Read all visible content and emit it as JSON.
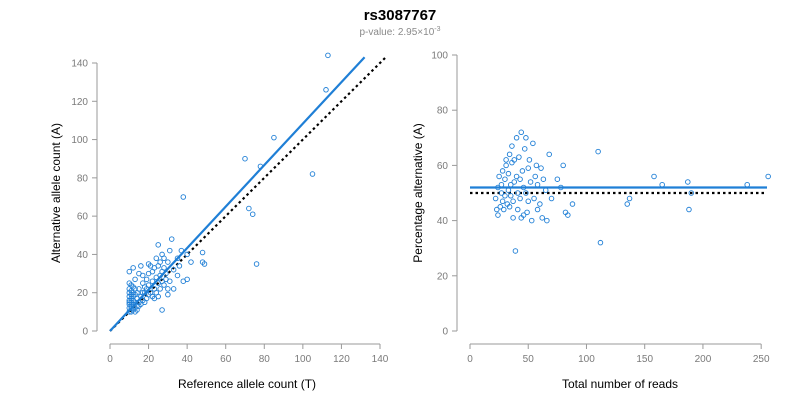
{
  "figure": {
    "title": "rs3087767",
    "subtitle_prefix": "p-value: 2.95×10",
    "subtitle_exponent": "-3"
  },
  "chart_data": [
    {
      "type": "scatter",
      "xlabel": "Reference allele count (T)",
      "ylabel": "Alternative allele count (A)",
      "xlim": [
        0,
        140
      ],
      "ylim": [
        0,
        140
      ],
      "xticks": [
        0,
        20,
        40,
        60,
        80,
        100,
        120,
        140
      ],
      "yticks": [
        0,
        20,
        40,
        60,
        80,
        100,
        120,
        140
      ],
      "colors": {
        "points": "#1f7fd6",
        "fit": "#1f7fd6",
        "reference": "#000000"
      },
      "points": [
        [
          10,
          10
        ],
        [
          10,
          12
        ],
        [
          10,
          14
        ],
        [
          10,
          15
        ],
        [
          10,
          16
        ],
        [
          10,
          18
        ],
        [
          10,
          20
        ],
        [
          10,
          22
        ],
        [
          10,
          25
        ],
        [
          10,
          31
        ],
        [
          11,
          10
        ],
        [
          11,
          12
        ],
        [
          11,
          13
        ],
        [
          11,
          15
        ],
        [
          11,
          17
        ],
        [
          11,
          19
        ],
        [
          11,
          21
        ],
        [
          11,
          24
        ],
        [
          12,
          11
        ],
        [
          12,
          12
        ],
        [
          12,
          14
        ],
        [
          12,
          16
        ],
        [
          12,
          18
        ],
        [
          12,
          20
        ],
        [
          12,
          23
        ],
        [
          12,
          33
        ],
        [
          13,
          10
        ],
        [
          13,
          12
        ],
        [
          13,
          15
        ],
        [
          13,
          19
        ],
        [
          13,
          22
        ],
        [
          13,
          27
        ],
        [
          14,
          11
        ],
        [
          14,
          13
        ],
        [
          14,
          17
        ],
        [
          14,
          20
        ],
        [
          15,
          13
        ],
        [
          15,
          15
        ],
        [
          15,
          22
        ],
        [
          15,
          30
        ],
        [
          16,
          14
        ],
        [
          16,
          18
        ],
        [
          16,
          34
        ],
        [
          17,
          16
        ],
        [
          17,
          20
        ],
        [
          17,
          25
        ],
        [
          17,
          29
        ],
        [
          18,
          15
        ],
        [
          18,
          20
        ],
        [
          18,
          23
        ],
        [
          19,
          17
        ],
        [
          19,
          22
        ],
        [
          19,
          27
        ],
        [
          20,
          19
        ],
        [
          20,
          24
        ],
        [
          20,
          30
        ],
        [
          20,
          35
        ],
        [
          21,
          20
        ],
        [
          21,
          34
        ],
        [
          22,
          18
        ],
        [
          22,
          26
        ],
        [
          22,
          31
        ],
        [
          23,
          17
        ],
        [
          23,
          22
        ],
        [
          23,
          33
        ],
        [
          24,
          20
        ],
        [
          24,
          28
        ],
        [
          24,
          38
        ],
        [
          25,
          18
        ],
        [
          25,
          25
        ],
        [
          25,
          34
        ],
        [
          25,
          45
        ],
        [
          26,
          22
        ],
        [
          26,
          29
        ],
        [
          26,
          36
        ],
        [
          27,
          11
        ],
        [
          27,
          26
        ],
        [
          27,
          31
        ],
        [
          27,
          40
        ],
        [
          28,
          24
        ],
        [
          28,
          33
        ],
        [
          28,
          38
        ],
        [
          29,
          27
        ],
        [
          29,
          30
        ],
        [
          30,
          19
        ],
        [
          30,
          22
        ],
        [
          30,
          36
        ],
        [
          31,
          26
        ],
        [
          31,
          42
        ],
        [
          32,
          48
        ],
        [
          33,
          22
        ],
        [
          33,
          32
        ],
        [
          35,
          29
        ],
        [
          35,
          38
        ],
        [
          36,
          34
        ],
        [
          37,
          42
        ],
        [
          38,
          26
        ],
        [
          38,
          70
        ],
        [
          40,
          27
        ],
        [
          40,
          40
        ],
        [
          42,
          36
        ],
        [
          48,
          41
        ],
        [
          48,
          36
        ],
        [
          49,
          35
        ],
        [
          70,
          90
        ],
        [
          72,
          64
        ],
        [
          74,
          61
        ],
        [
          76,
          35
        ],
        [
          78,
          86
        ],
        [
          85,
          101
        ],
        [
          105,
          82
        ],
        [
          112,
          126
        ],
        [
          113,
          144
        ]
      ],
      "fit_line": {
        "x": [
          0,
          132
        ],
        "y": [
          0,
          143
        ]
      },
      "reference_line": {
        "x": [
          0,
          143
        ],
        "y": [
          0,
          143
        ]
      }
    },
    {
      "type": "scatter",
      "xlabel": "Total number of reads",
      "ylabel": "Percentage alternative (A)",
      "xlim": [
        0,
        255
      ],
      "ylim": [
        0,
        100
      ],
      "xticks": [
        0,
        50,
        100,
        150,
        200,
        250
      ],
      "yticks": [
        0,
        20,
        40,
        60,
        80,
        100
      ],
      "colors": {
        "points": "#1f7fd6",
        "fit": "#1f7fd6",
        "reference": "#000000"
      },
      "points": [
        [
          22,
          48
        ],
        [
          23,
          44
        ],
        [
          24,
          52
        ],
        [
          24,
          42
        ],
        [
          25,
          56
        ],
        [
          26,
          45
        ],
        [
          27,
          50
        ],
        [
          27,
          53
        ],
        [
          28,
          47
        ],
        [
          28,
          58
        ],
        [
          29,
          44
        ],
        [
          30,
          49
        ],
        [
          30,
          55
        ],
        [
          31,
          60
        ],
        [
          31,
          62
        ],
        [
          32,
          46
        ],
        [
          33,
          51
        ],
        [
          33,
          57
        ],
        [
          34,
          45
        ],
        [
          34,
          64
        ],
        [
          35,
          49
        ],
        [
          35,
          53
        ],
        [
          36,
          61
        ],
        [
          36,
          67
        ],
        [
          37,
          41
        ],
        [
          37,
          47
        ],
        [
          38,
          54
        ],
        [
          38,
          62
        ],
        [
          39,
          29
        ],
        [
          40,
          56
        ],
        [
          40,
          70
        ],
        [
          41,
          44
        ],
        [
          41,
          50
        ],
        [
          42,
          63
        ],
        [
          43,
          48
        ],
        [
          43,
          55
        ],
        [
          44,
          72
        ],
        [
          44,
          41
        ],
        [
          45,
          58
        ],
        [
          46,
          42
        ],
        [
          46,
          52
        ],
        [
          47,
          66
        ],
        [
          48,
          50
        ],
        [
          48,
          70
        ],
        [
          49,
          43
        ],
        [
          50,
          47
        ],
        [
          50,
          59
        ],
        [
          51,
          62
        ],
        [
          52,
          54
        ],
        [
          53,
          40
        ],
        [
          54,
          68
        ],
        [
          55,
          48
        ],
        [
          56,
          56
        ],
        [
          57,
          60
        ],
        [
          58,
          44
        ],
        [
          58,
          53
        ],
        [
          60,
          46
        ],
        [
          61,
          59
        ],
        [
          62,
          41
        ],
        [
          63,
          55
        ],
        [
          65,
          51
        ],
        [
          66,
          40
        ],
        [
          68,
          64
        ],
        [
          70,
          48
        ],
        [
          75,
          55
        ],
        [
          78,
          52
        ],
        [
          80,
          60
        ],
        [
          82,
          43
        ],
        [
          84,
          42
        ],
        [
          88,
          46
        ],
        [
          110,
          65
        ],
        [
          112,
          32
        ],
        [
          135,
          46
        ],
        [
          137,
          48
        ],
        [
          158,
          56
        ],
        [
          165,
          53
        ],
        [
          187,
          54
        ],
        [
          188,
          44
        ],
        [
          190,
          50
        ],
        [
          238,
          53
        ],
        [
          256,
          56
        ]
      ],
      "fit_line": {
        "x": [
          0,
          255
        ],
        "y": [
          52,
          52
        ]
      },
      "reference_line": {
        "x": [
          0,
          255
        ],
        "y": [
          50,
          50
        ]
      }
    }
  ]
}
